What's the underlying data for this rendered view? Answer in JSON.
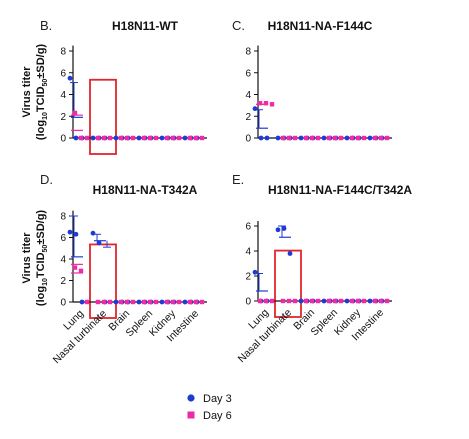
{
  "colors": {
    "day3": "#1f3bd6",
    "day6": "#ee2aa4",
    "highlight": "#e0262b",
    "axis": "#111111",
    "mean_line": "#333333"
  },
  "y_axis": {
    "label_line1": "Virus titer",
    "label_line2_prefix": "(log",
    "label_line2_sub1": "10",
    "label_line2_mid": "TCID",
    "label_line2_sub2": "50",
    "label_line2_suffix": "±SD/g)"
  },
  "legend": {
    "day3": "Day 3",
    "day6": "Day 6"
  },
  "chart_data": [
    {
      "panel": "B.",
      "title": "H18N11-WT",
      "type": "scatter",
      "categories": [
        "Lung",
        "Nasal turbinate",
        "Brain",
        "Spleen",
        "Kidney",
        "Intestine"
      ],
      "yticks": [
        "0",
        "2",
        "4",
        "6",
        "8"
      ],
      "ylim": [
        0,
        8.5
      ],
      "show_category_labels": false,
      "highlight_category": 1,
      "series": [
        {
          "name": "Day 3",
          "values": [
            [
              5.5,
              0,
              0
            ],
            [
              0,
              0,
              0
            ],
            [
              0,
              0,
              0
            ],
            [
              0,
              0,
              0
            ],
            [
              0,
              0,
              0
            ],
            [
              0,
              0,
              0
            ]
          ]
        },
        {
          "name": "Day 6",
          "values": [
            [
              2.3,
              0,
              0
            ],
            [
              0,
              0,
              0
            ],
            [
              0,
              0,
              0
            ],
            [
              0,
              0,
              0
            ],
            [
              0,
              0,
              0
            ],
            [
              0,
              0,
              0
            ]
          ]
        }
      ],
      "means": [
        [
          1.9,
          2.1,
          0.7
        ],
        [
          0,
          0,
          0
        ],
        [
          0,
          0,
          0
        ],
        [
          0,
          0,
          0
        ],
        [
          0,
          0,
          0
        ],
        [
          0,
          0,
          0
        ]
      ],
      "mean_sd": [
        [
          5.1,
          0
        ],
        [
          0,
          0
        ],
        [
          0,
          0
        ],
        [
          0,
          0
        ],
        [
          0,
          0
        ],
        [
          0,
          0
        ]
      ]
    },
    {
      "panel": "C.",
      "title": "H18N11-NA-F144C",
      "type": "scatter",
      "categories": [
        "Lung",
        "Nasal turbinate",
        "Brain",
        "Spleen",
        "Kidney",
        "Intestine"
      ],
      "yticks": [
        "0",
        "2",
        "4",
        "6",
        "8"
      ],
      "ylim": [
        0,
        8.5
      ],
      "show_category_labels": false,
      "highlight_category": null,
      "series": [
        {
          "name": "Day 3",
          "values": [
            [
              2.7,
              0,
              0
            ],
            [
              0,
              0,
              0
            ],
            [
              0,
              0,
              0
            ],
            [
              0,
              0,
              0
            ],
            [
              0,
              0,
              0
            ],
            [
              0,
              0,
              0
            ]
          ]
        },
        {
          "name": "Day 6",
          "values": [
            [
              3.2,
              3.2,
              3.1
            ],
            [
              0,
              0,
              0
            ],
            [
              0,
              0,
              0
            ],
            [
              0,
              0,
              0
            ],
            [
              0,
              0,
              0
            ],
            [
              0,
              0,
              0
            ]
          ]
        }
      ],
      "means": [
        [
          0.9,
          3.1,
          3.1
        ],
        [
          0,
          0,
          0
        ],
        [
          0,
          0,
          0
        ],
        [
          0,
          0,
          0
        ],
        [
          0,
          0,
          0
        ],
        [
          0,
          0,
          0
        ]
      ],
      "mean_sd": [
        [
          2.6,
          0
        ],
        [
          0,
          0
        ],
        [
          0,
          0
        ],
        [
          0,
          0
        ],
        [
          0,
          0
        ],
        [
          0,
          0
        ]
      ]
    },
    {
      "panel": "D.",
      "title": "H18N11-NA-T342A",
      "type": "scatter",
      "categories": [
        "Lung",
        "Nasal turbinate",
        "Brain",
        "Spleen",
        "Kidney",
        "Intestine"
      ],
      "yticks": [
        "0",
        "2",
        "4",
        "6",
        "8"
      ],
      "ylim": [
        0,
        8.5
      ],
      "show_category_labels": true,
      "highlight_category": 1,
      "series": [
        {
          "name": "Day 3",
          "values": [
            [
              6.5,
              6.3,
              0
            ],
            [
              6.4,
              5.5,
              0
            ],
            [
              0,
              0,
              0
            ],
            [
              0,
              0,
              0
            ],
            [
              0,
              0,
              0
            ],
            [
              0,
              0,
              0
            ]
          ]
        },
        {
          "name": "Day 6",
          "values": [
            [
              3.2,
              2.9,
              0
            ],
            [
              0,
              0,
              0
            ],
            [
              0,
              0,
              0
            ],
            [
              0,
              0,
              0
            ],
            [
              0,
              0,
              0
            ],
            [
              0,
              0,
              0
            ]
          ]
        }
      ],
      "means": [
        [
          4.2,
          3.5,
          2.7
        ],
        [
          5.7,
          0,
          0
        ],
        [
          0,
          0,
          0
        ],
        [
          0,
          0,
          0
        ],
        [
          0,
          0,
          0
        ],
        [
          0,
          0,
          0
        ]
      ],
      "mean_sd": [
        [
          8.0,
          0
        ],
        [
          6.3,
          5.1
        ],
        [
          0,
          0
        ],
        [
          0,
          0
        ],
        [
          0,
          0
        ],
        [
          0,
          0
        ]
      ]
    },
    {
      "panel": "E.",
      "title": "H18N11-NA-F144C/T342A",
      "type": "scatter",
      "categories": [
        "Lung",
        "Nasal turbinate",
        "Brain",
        "Spleen",
        "Kidney",
        "Intestine"
      ],
      "yticks": [
        "0",
        "2",
        "4",
        "6"
      ],
      "ylim": [
        0,
        6.4
      ],
      "show_category_labels": true,
      "highlight_category": 1,
      "series": [
        {
          "name": "Day 3",
          "values": [
            [
              2.3,
              0,
              0
            ],
            [
              5.7,
              5.8,
              3.8
            ],
            [
              0,
              0,
              0
            ],
            [
              0,
              0,
              0
            ],
            [
              0,
              0,
              0
            ],
            [
              0,
              0,
              0
            ]
          ]
        },
        {
          "name": "Day 6",
          "values": [
            [
              0,
              0,
              0
            ],
            [
              0,
              0,
              0
            ],
            [
              0,
              0,
              0
            ],
            [
              0,
              0,
              0
            ],
            [
              0,
              0,
              0
            ],
            [
              0,
              0,
              0
            ]
          ]
        }
      ],
      "means": [
        [
          0.8,
          0,
          0
        ],
        [
          5.1,
          0,
          0
        ],
        [
          0,
          0,
          0
        ],
        [
          0,
          0,
          0
        ],
        [
          0,
          0,
          0
        ],
        [
          0,
          0,
          0
        ]
      ],
      "mean_sd": [
        [
          2.2,
          0
        ],
        [
          6.0,
          0
        ],
        [
          0,
          0
        ],
        [
          0,
          0
        ],
        [
          0,
          0
        ],
        [
          0,
          0
        ]
      ]
    }
  ]
}
